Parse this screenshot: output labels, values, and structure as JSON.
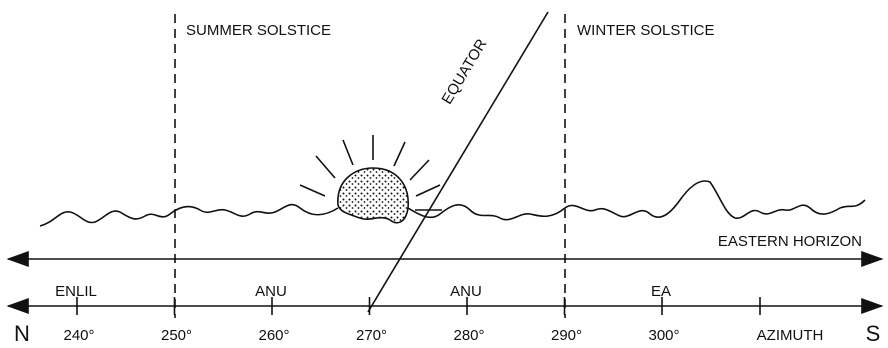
{
  "diagram": {
    "solstices": [
      "SUMMER SOLSTICE",
      "WINTER SOLSTICE"
    ],
    "equator_label": "EQUATOR",
    "horizon_label": "EASTERN HORIZON",
    "regions": [
      "ENLIL",
      "ANU",
      "ANU",
      "EA"
    ],
    "azimuth_ticks": [
      "240°",
      "250°",
      "260°",
      "270°",
      "280°",
      "290°",
      "300°"
    ],
    "azimuth_label": "AZIMUTH",
    "north": "N",
    "south": "S"
  }
}
